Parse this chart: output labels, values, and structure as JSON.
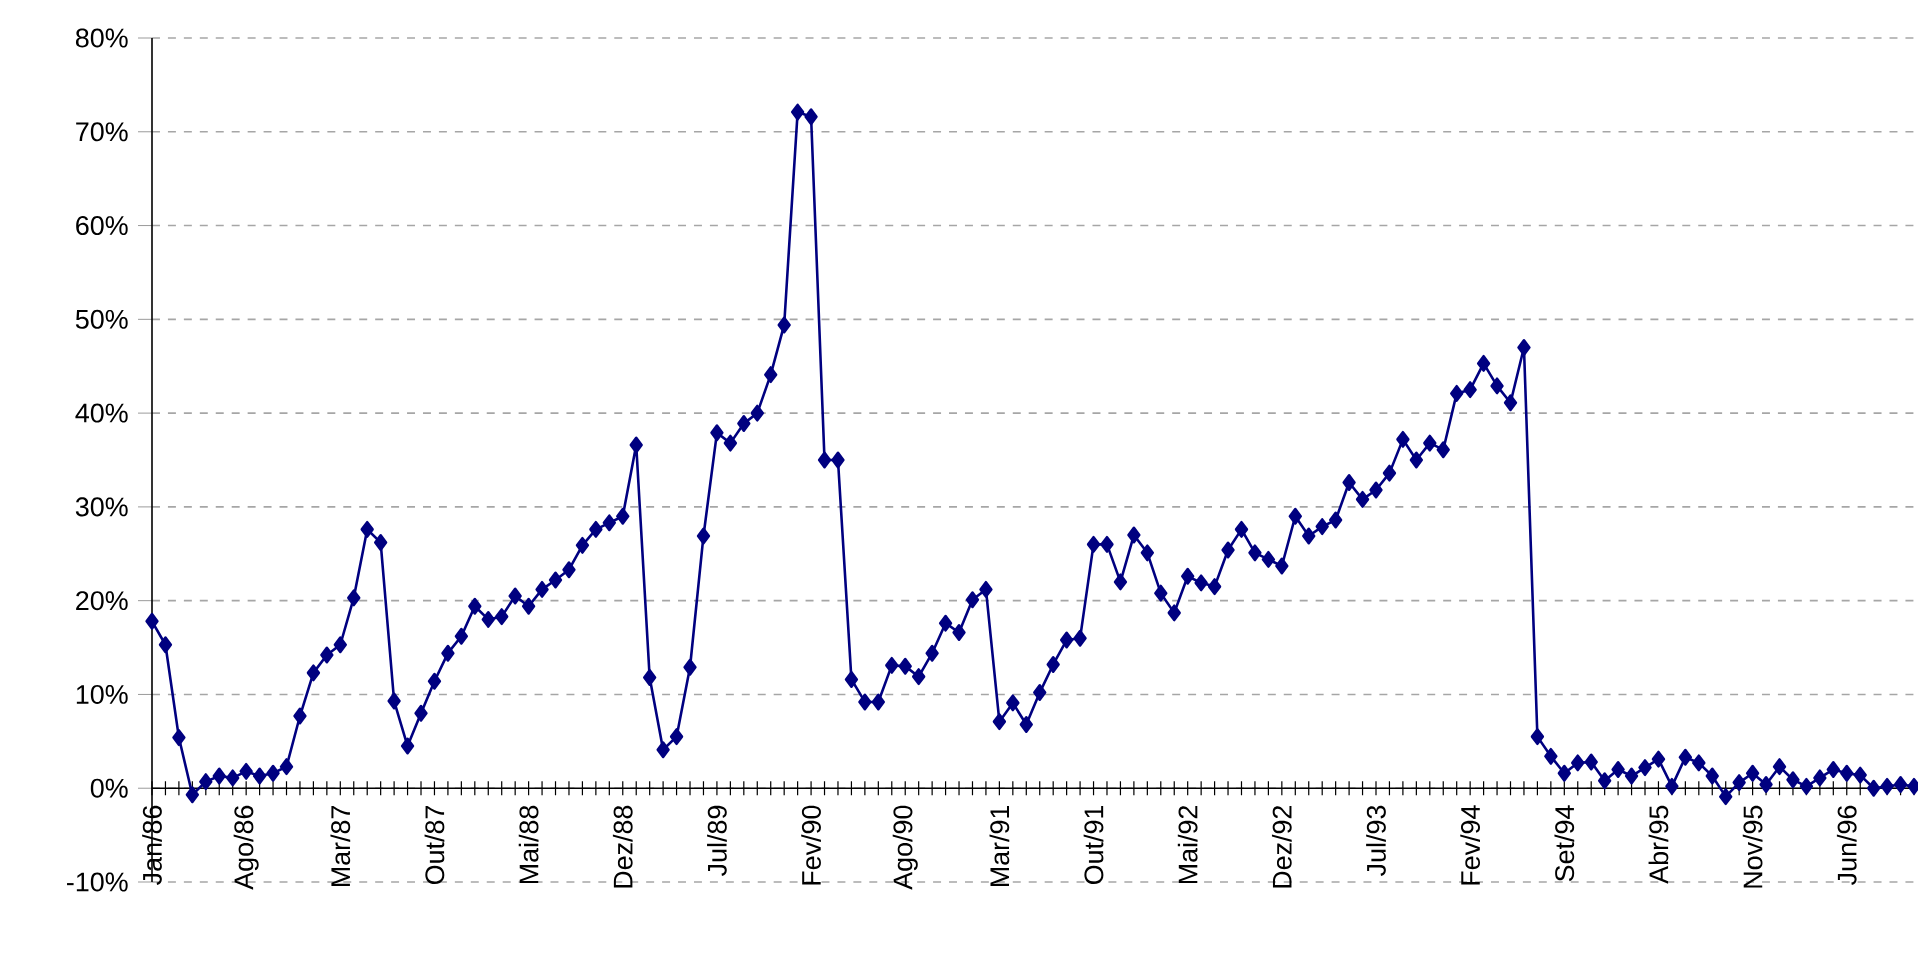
{
  "chart_data": {
    "type": "line",
    "categories": [
      "Jan/86",
      null,
      null,
      null,
      null,
      null,
      null,
      "Ago/86",
      null,
      null,
      null,
      null,
      null,
      null,
      "Mar/87",
      null,
      null,
      null,
      null,
      null,
      null,
      "Out/87",
      null,
      null,
      null,
      null,
      null,
      null,
      "Mai/88",
      null,
      null,
      null,
      null,
      null,
      null,
      "Dez/88",
      null,
      null,
      null,
      null,
      null,
      null,
      "Jul/89",
      null,
      null,
      null,
      null,
      null,
      null,
      "Fev/90",
      null,
      null,
      null,
      null,
      null,
      null,
      "Ago/90",
      null,
      null,
      null,
      null,
      null,
      null,
      "Mar/91",
      null,
      null,
      null,
      null,
      null,
      null,
      "Out/91",
      null,
      null,
      null,
      null,
      null,
      null,
      "Mai/92",
      null,
      null,
      null,
      null,
      null,
      null,
      "Dez/92",
      null,
      null,
      null,
      null,
      null,
      null,
      "Jul/93",
      null,
      null,
      null,
      null,
      null,
      null,
      "Fev/94",
      null,
      null,
      null,
      null,
      null,
      null,
      "Set/94",
      null,
      null,
      null,
      null,
      null,
      null,
      "Abr/95",
      null,
      null,
      null,
      null,
      null,
      null,
      "Nov/95",
      null,
      null,
      null,
      null,
      null,
      null,
      "Jun/96",
      null,
      null,
      null,
      null,
      null
    ],
    "series": [
      {
        "color": "#000080",
        "values": [
          17.8,
          15.3,
          5.4,
          -0.7,
          0.7,
          1.3,
          1.1,
          1.8,
          1.3,
          1.6,
          2.3,
          7.7,
          12.3,
          14.2,
          15.3,
          20.3,
          27.6,
          26.2,
          9.3,
          4.5,
          8.0,
          11.4,
          14.4,
          16.2,
          19.4,
          18.0,
          18.3,
          20.5,
          19.4,
          21.2,
          22.2,
          23.3,
          25.9,
          27.6,
          28.3,
          29.0,
          36.6,
          11.8,
          4.1,
          5.5,
          12.9,
          26.9,
          37.9,
          36.8,
          38.9,
          40.0,
          44.1,
          49.4,
          72.1,
          71.6,
          35.0,
          35.0,
          11.6,
          9.2,
          9.2,
          13.1,
          13.0,
          11.9,
          14.4,
          17.6,
          16.6,
          20.1,
          21.2,
          7.1,
          9.1,
          6.8,
          10.2,
          13.2,
          15.8,
          16.0,
          26.0,
          26.0,
          22.0,
          27.0,
          25.1,
          20.8,
          18.7,
          22.6,
          21.9,
          21.5,
          25.4,
          27.6,
          25.1,
          24.4,
          23.7,
          29.0,
          26.9,
          27.9,
          28.6,
          32.6,
          30.8,
          31.8,
          33.6,
          37.2,
          35.0,
          36.8,
          36.1,
          42.1,
          42.5,
          45.3,
          42.9,
          41.1,
          47.0,
          5.5,
          3.4,
          1.6,
          2.7,
          2.8,
          0.8,
          2.0,
          1.3,
          2.2,
          3.1,
          0.2,
          3.3,
          2.7,
          1.3,
          -0.9,
          0.6,
          1.6,
          0.4,
          2.3,
          0.9,
          0.2,
          1.1,
          2.0,
          1.6,
          1.4,
          0.0,
          0.2,
          0.4,
          0.2
        ]
      }
    ],
    "ylim": [
      -10,
      80
    ],
    "yticks": [
      {
        "value": -10,
        "label": "-10%"
      },
      {
        "value": 0,
        "label": "0%"
      },
      {
        "value": 10,
        "label": "10%"
      },
      {
        "value": 20,
        "label": "20%"
      },
      {
        "value": 30,
        "label": "30%"
      },
      {
        "value": 40,
        "label": "40%"
      },
      {
        "value": 50,
        "label": "50%"
      },
      {
        "value": 60,
        "label": "60%"
      },
      {
        "value": 70,
        "label": "70%"
      },
      {
        "value": 80,
        "label": "80%"
      }
    ],
    "grid": "y",
    "marker": "diamond",
    "line_style": "solid"
  }
}
